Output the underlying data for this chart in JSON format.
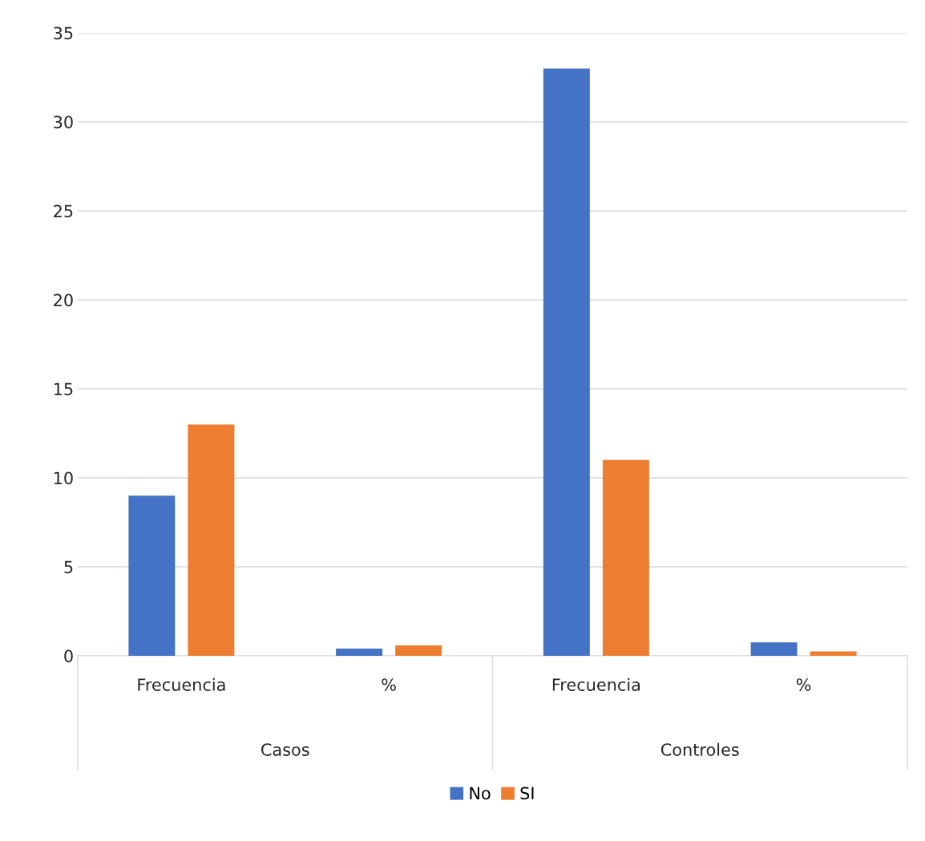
{
  "chart_data": {
    "type": "bar",
    "categories": [
      "Frecuencia",
      "%",
      "Frecuencia",
      "%"
    ],
    "annotations": [
      "Casos",
      "Controles"
    ],
    "series": [
      {
        "name": "No",
        "color": "#4472c4",
        "values": [
          9,
          0.41,
          33,
          0.75
        ]
      },
      {
        "name": "SI",
        "color": "#ed7d31",
        "values": [
          13,
          0.59,
          11,
          0.25
        ]
      }
    ],
    "ylim": [
      0,
      35
    ],
    "yticks": [
      0,
      5,
      10,
      15,
      20,
      25,
      30,
      35
    ],
    "grid": "y",
    "legend": "bottom"
  }
}
